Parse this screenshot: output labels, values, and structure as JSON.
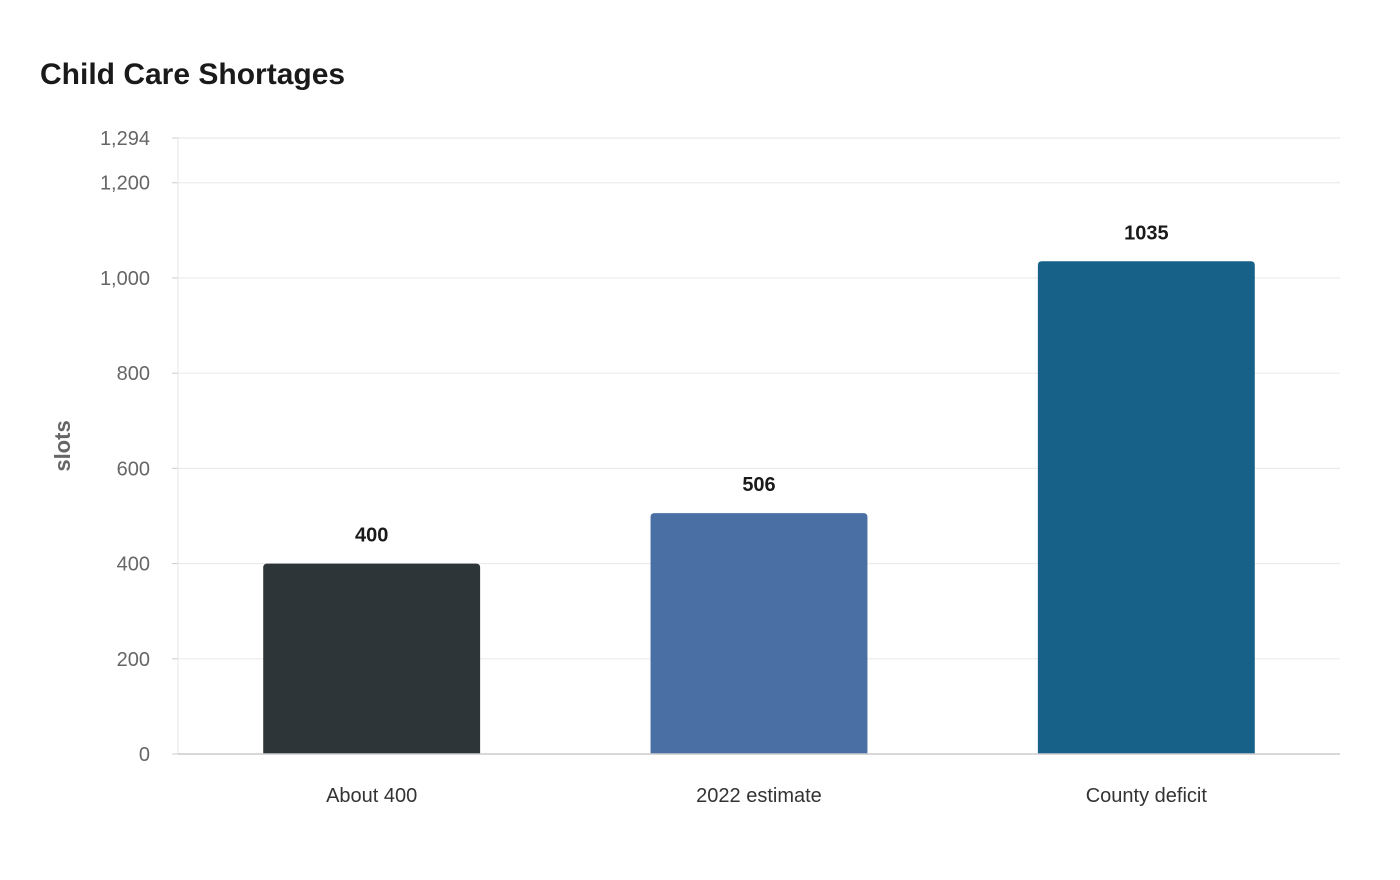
{
  "chart_data": {
    "type": "bar",
    "title": "Child Care Shortages",
    "xlabel": "",
    "ylabel": "slots",
    "categories": [
      "About 400",
      "2022 estimate",
      "County deficit"
    ],
    "values": [
      400,
      506,
      1035
    ],
    "value_labels": [
      "400",
      "506",
      "1035"
    ],
    "colors": [
      "#2d3538",
      "#4a6fa5",
      "#176188"
    ],
    "ylim": [
      0,
      1294
    ],
    "yticks": [
      0,
      200,
      400,
      600,
      800,
      1000,
      1200,
      1294
    ],
    "ytick_labels": [
      "0",
      "200",
      "400",
      "600",
      "800",
      "1,000",
      "1,200",
      "1,294"
    ],
    "grid": true,
    "legend": "none"
  }
}
